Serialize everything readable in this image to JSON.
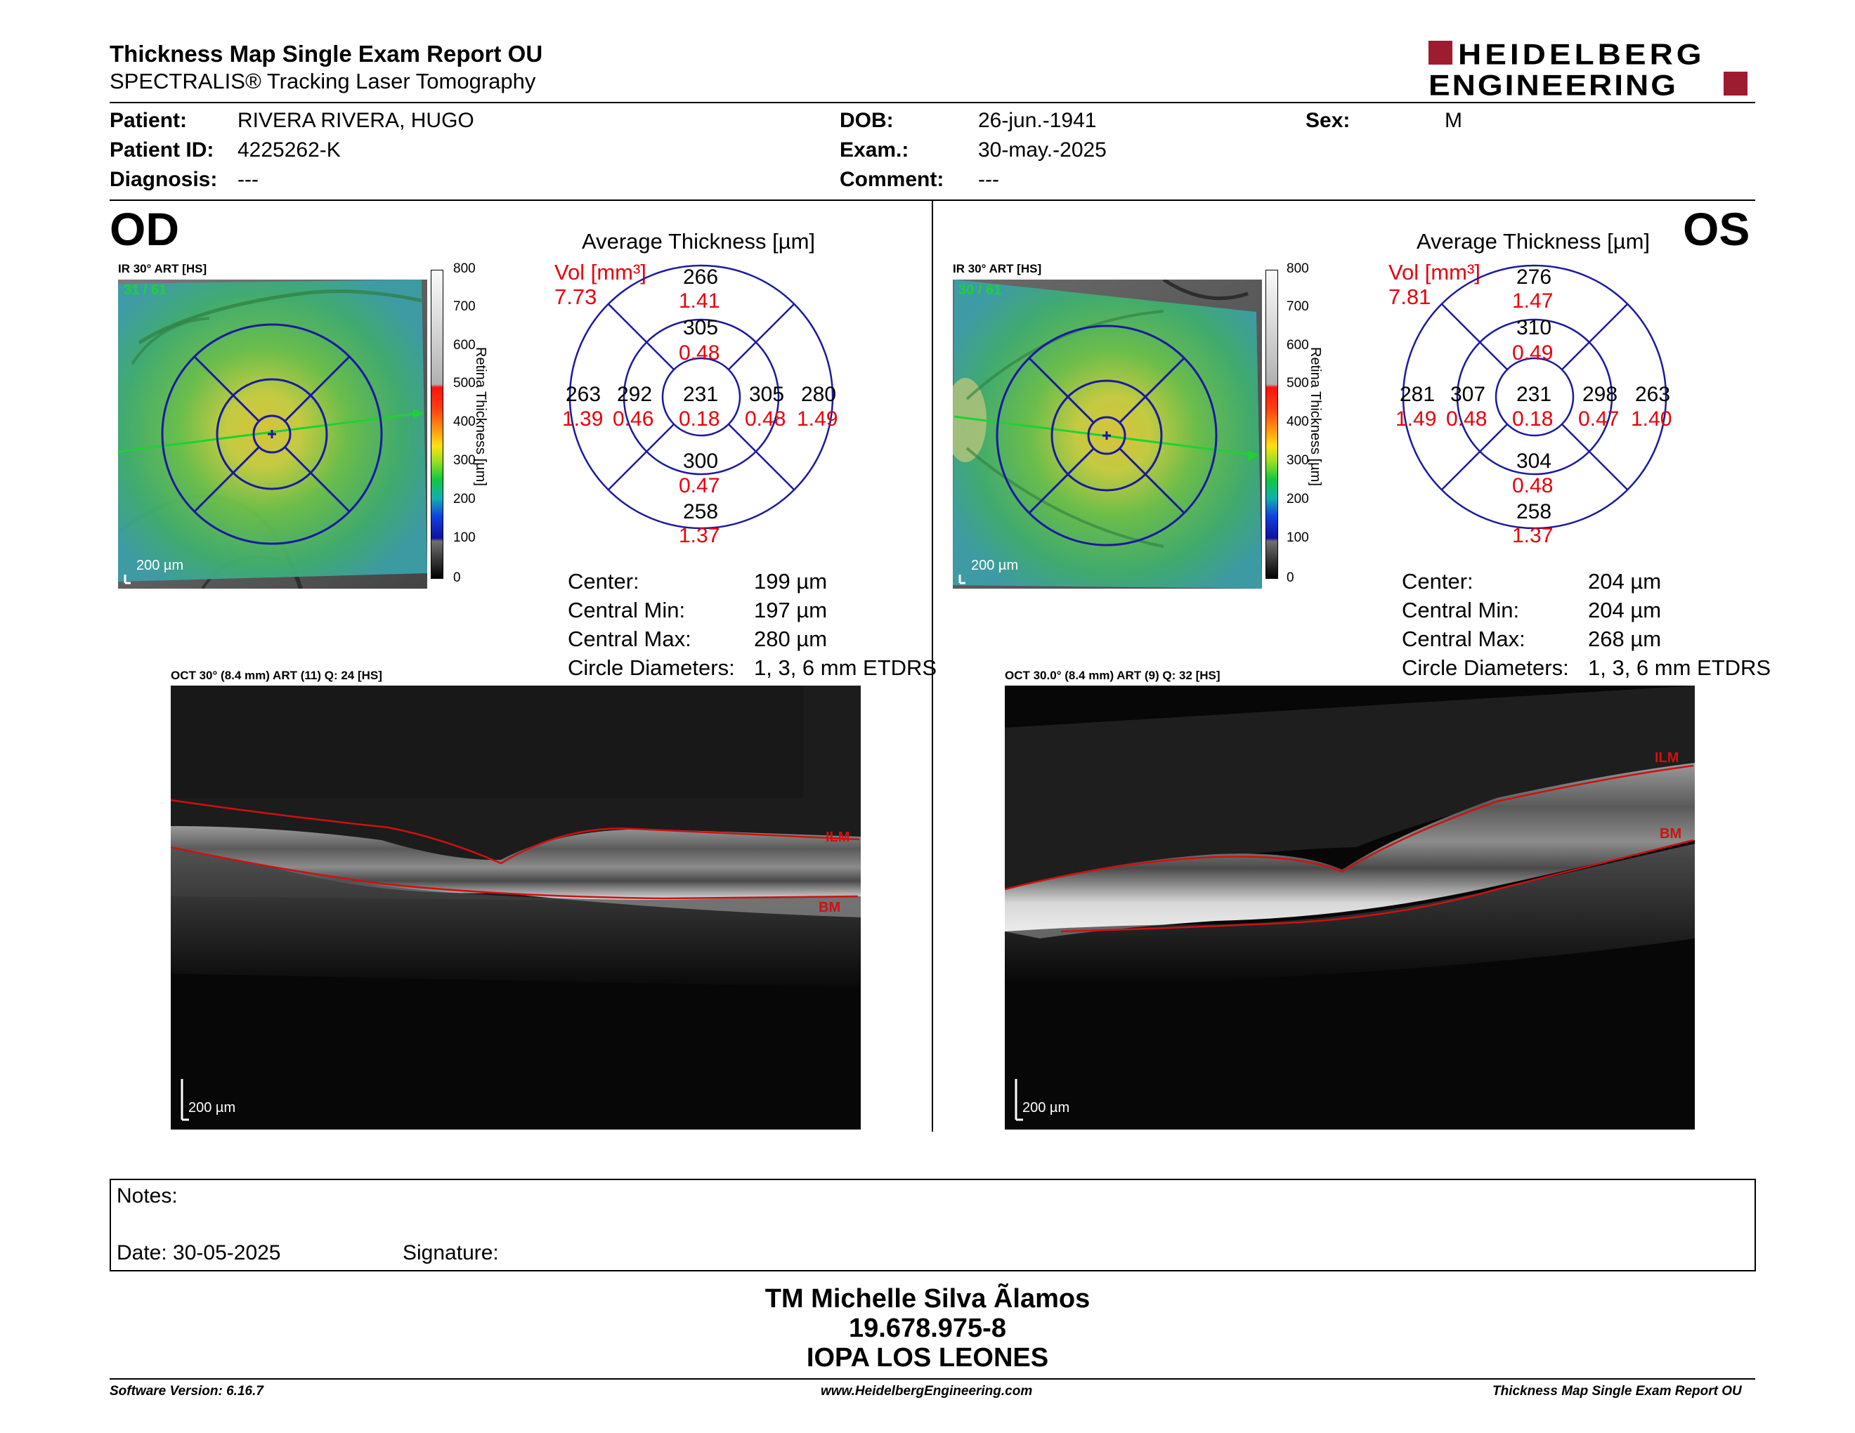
{
  "header": {
    "title": "Thickness Map Single Exam Report OU",
    "subtitle": "SPECTRALIS® Tracking Laser Tomography",
    "logo_line1": "HEIDELBERG",
    "logo_line2": "ENGINEERING",
    "brand_color": "#9d1c30"
  },
  "patient": {
    "patient_label": "Patient:",
    "patient_value": "RIVERA RIVERA, HUGO",
    "id_label": "Patient ID:",
    "id_value": "4225262-K",
    "diagnosis_label": "Diagnosis:",
    "diagnosis_value": "---",
    "dob_label": "DOB:",
    "dob_value": "26-jun.-1941",
    "exam_label": "Exam.:",
    "exam_value": "30-may.-2025",
    "comment_label": "Comment:",
    "comment_value": "---",
    "sex_label": "Sex:",
    "sex_value": "M"
  },
  "od": {
    "eye": "OD",
    "ir_label": "IR 30° ART [HS]",
    "ir_overlay": "31 / 61",
    "ir_scale": "200 µm",
    "colorbar_title": "Retina Thickness [µm]",
    "colorbar_ticks": [
      "800",
      "700",
      "600",
      "500",
      "400",
      "300",
      "200",
      "100",
      "0"
    ],
    "avg_title": "Average Thickness [µm]",
    "vol_label": "Vol [mm³]",
    "vol_total": "7.73",
    "sectors": {
      "outer_sup": {
        "thk": "266",
        "vol": "1.41"
      },
      "inner_sup": {
        "thk": "305",
        "vol": "0.48"
      },
      "outer_temp": {
        "thk": "263",
        "vol": "1.39"
      },
      "inner_temp": {
        "thk": "292",
        "vol": "0.46"
      },
      "center": {
        "thk": "231",
        "vol": "0.18"
      },
      "inner_nas": {
        "thk": "305",
        "vol": "0.48"
      },
      "outer_nas": {
        "thk": "280",
        "vol": "1.49"
      },
      "inner_inf": {
        "thk": "300",
        "vol": "0.47"
      },
      "outer_inf": {
        "thk": "258",
        "vol": "1.37"
      }
    },
    "stats": {
      "center_label": "Center:",
      "center_value": "199 µm",
      "min_label": "Central Min:",
      "min_value": "197 µm",
      "max_label": "Central Max:",
      "max_value": "280 µm",
      "diam_label": "Circle Diameters:",
      "diam_value": "1, 3, 6 mm ETDRS"
    },
    "oct_label": "OCT 30° (8.4 mm) ART (11) Q: 24 [HS]",
    "oct_ilm": "ILM",
    "oct_bm": "BM",
    "oct_scale": "200 µm"
  },
  "os": {
    "eye": "OS",
    "ir_label": "IR 30° ART [HS]",
    "ir_overlay": "30 / 61",
    "ir_scale": "200 µm",
    "colorbar_title": "Retina Thickness [µm]",
    "colorbar_ticks": [
      "800",
      "700",
      "600",
      "500",
      "400",
      "300",
      "200",
      "100",
      "0"
    ],
    "avg_title": "Average Thickness [µm]",
    "vol_label": "Vol [mm³]",
    "vol_total": "7.81",
    "sectors": {
      "outer_sup": {
        "thk": "276",
        "vol": "1.47"
      },
      "inner_sup": {
        "thk": "310",
        "vol": "0.49"
      },
      "outer_temp": {
        "thk": "281",
        "vol": "1.49"
      },
      "inner_temp": {
        "thk": "307",
        "vol": "0.48"
      },
      "center": {
        "thk": "231",
        "vol": "0.18"
      },
      "inner_nas": {
        "thk": "298",
        "vol": "0.47"
      },
      "outer_nas": {
        "thk": "263",
        "vol": "1.40"
      },
      "inner_inf": {
        "thk": "304",
        "vol": "0.48"
      },
      "outer_inf": {
        "thk": "258",
        "vol": "1.37"
      }
    },
    "stats": {
      "center_label": "Center:",
      "center_value": "204 µm",
      "min_label": "Central Min:",
      "min_value": "204 µm",
      "max_label": "Central Max:",
      "max_value": "268 µm",
      "diam_label": "Circle Diameters:",
      "diam_value": "1, 3, 6 mm ETDRS"
    },
    "oct_label": "OCT 30.0° (8.4 mm) ART (9) Q: 32 [HS]",
    "oct_ilm": "ILM",
    "oct_bm": "BM",
    "oct_scale": "200 µm"
  },
  "notes": {
    "notes_label": "Notes:",
    "date_label": "Date: 30-05-2025",
    "signature_label": "Signature:"
  },
  "signature": {
    "name": "TM Michelle Silva Ãlamos",
    "rut": "19.678.975-8",
    "institution": "IOPA LOS LEONES"
  },
  "footer": {
    "software": "Software Version: 6.16.7",
    "website": "www.HeidelbergEngineering.com",
    "report": "Thickness Map Single Exam Report OU"
  },
  "colors": {
    "etdrs_ring": "#1a1aa0",
    "volume_red": "#e8000b",
    "segmentation_red": "#d01010"
  }
}
